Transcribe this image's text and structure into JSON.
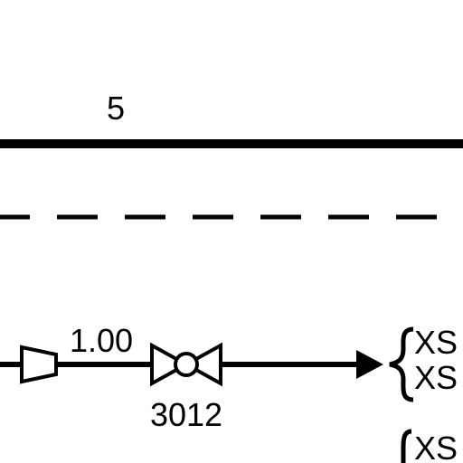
{
  "diagram": {
    "line_number_label": "5",
    "pipe_size_label": "1.00",
    "valve_tag": "3012",
    "offpage_labels": [
      "XS",
      "XS",
      "XS"
    ],
    "colors": {
      "stroke": "#000000",
      "background": "#ffffff"
    },
    "symbols": {
      "reducer": "reducer-icon",
      "valve": "ball-valve-icon",
      "flow_arrow": "flow-arrow-icon",
      "brace": "brace-icon"
    }
  }
}
